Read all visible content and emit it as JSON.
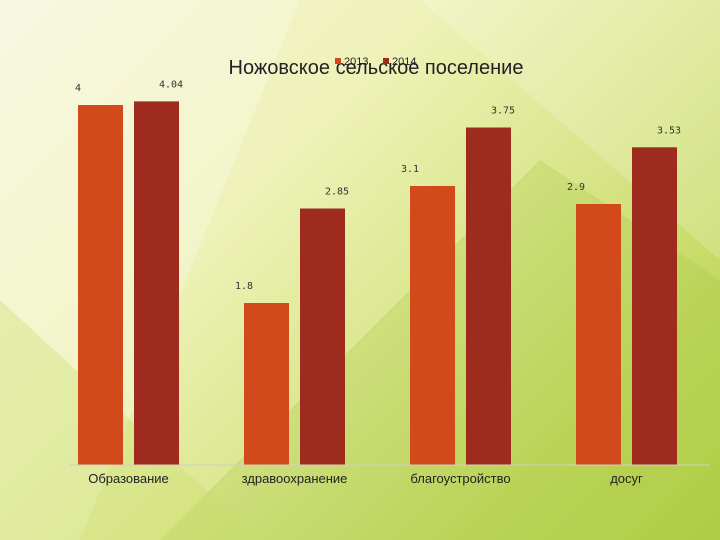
{
  "chart_data": {
    "type": "bar",
    "title": "Ножовское сельское поселение",
    "categories": [
      "Образование",
      "здравоохранение",
      "благоустройство",
      "досуг"
    ],
    "series": [
      {
        "name": "2013",
        "color": "#d2491b",
        "values": [
          4,
          1.8,
          3.1,
          2.9
        ]
      },
      {
        "name": "2014",
        "color": "#9e2c1e",
        "values": [
          4.04,
          2.85,
          3.75,
          3.53
        ]
      }
    ],
    "data_labels": [
      [
        "4",
        "1.8",
        "3.1",
        "2.9"
      ],
      [
        "4.04",
        "2.85",
        "3.75",
        "3.53"
      ]
    ],
    "ylim": [
      0,
      4.5
    ],
    "grid": false,
    "legend": "top"
  }
}
